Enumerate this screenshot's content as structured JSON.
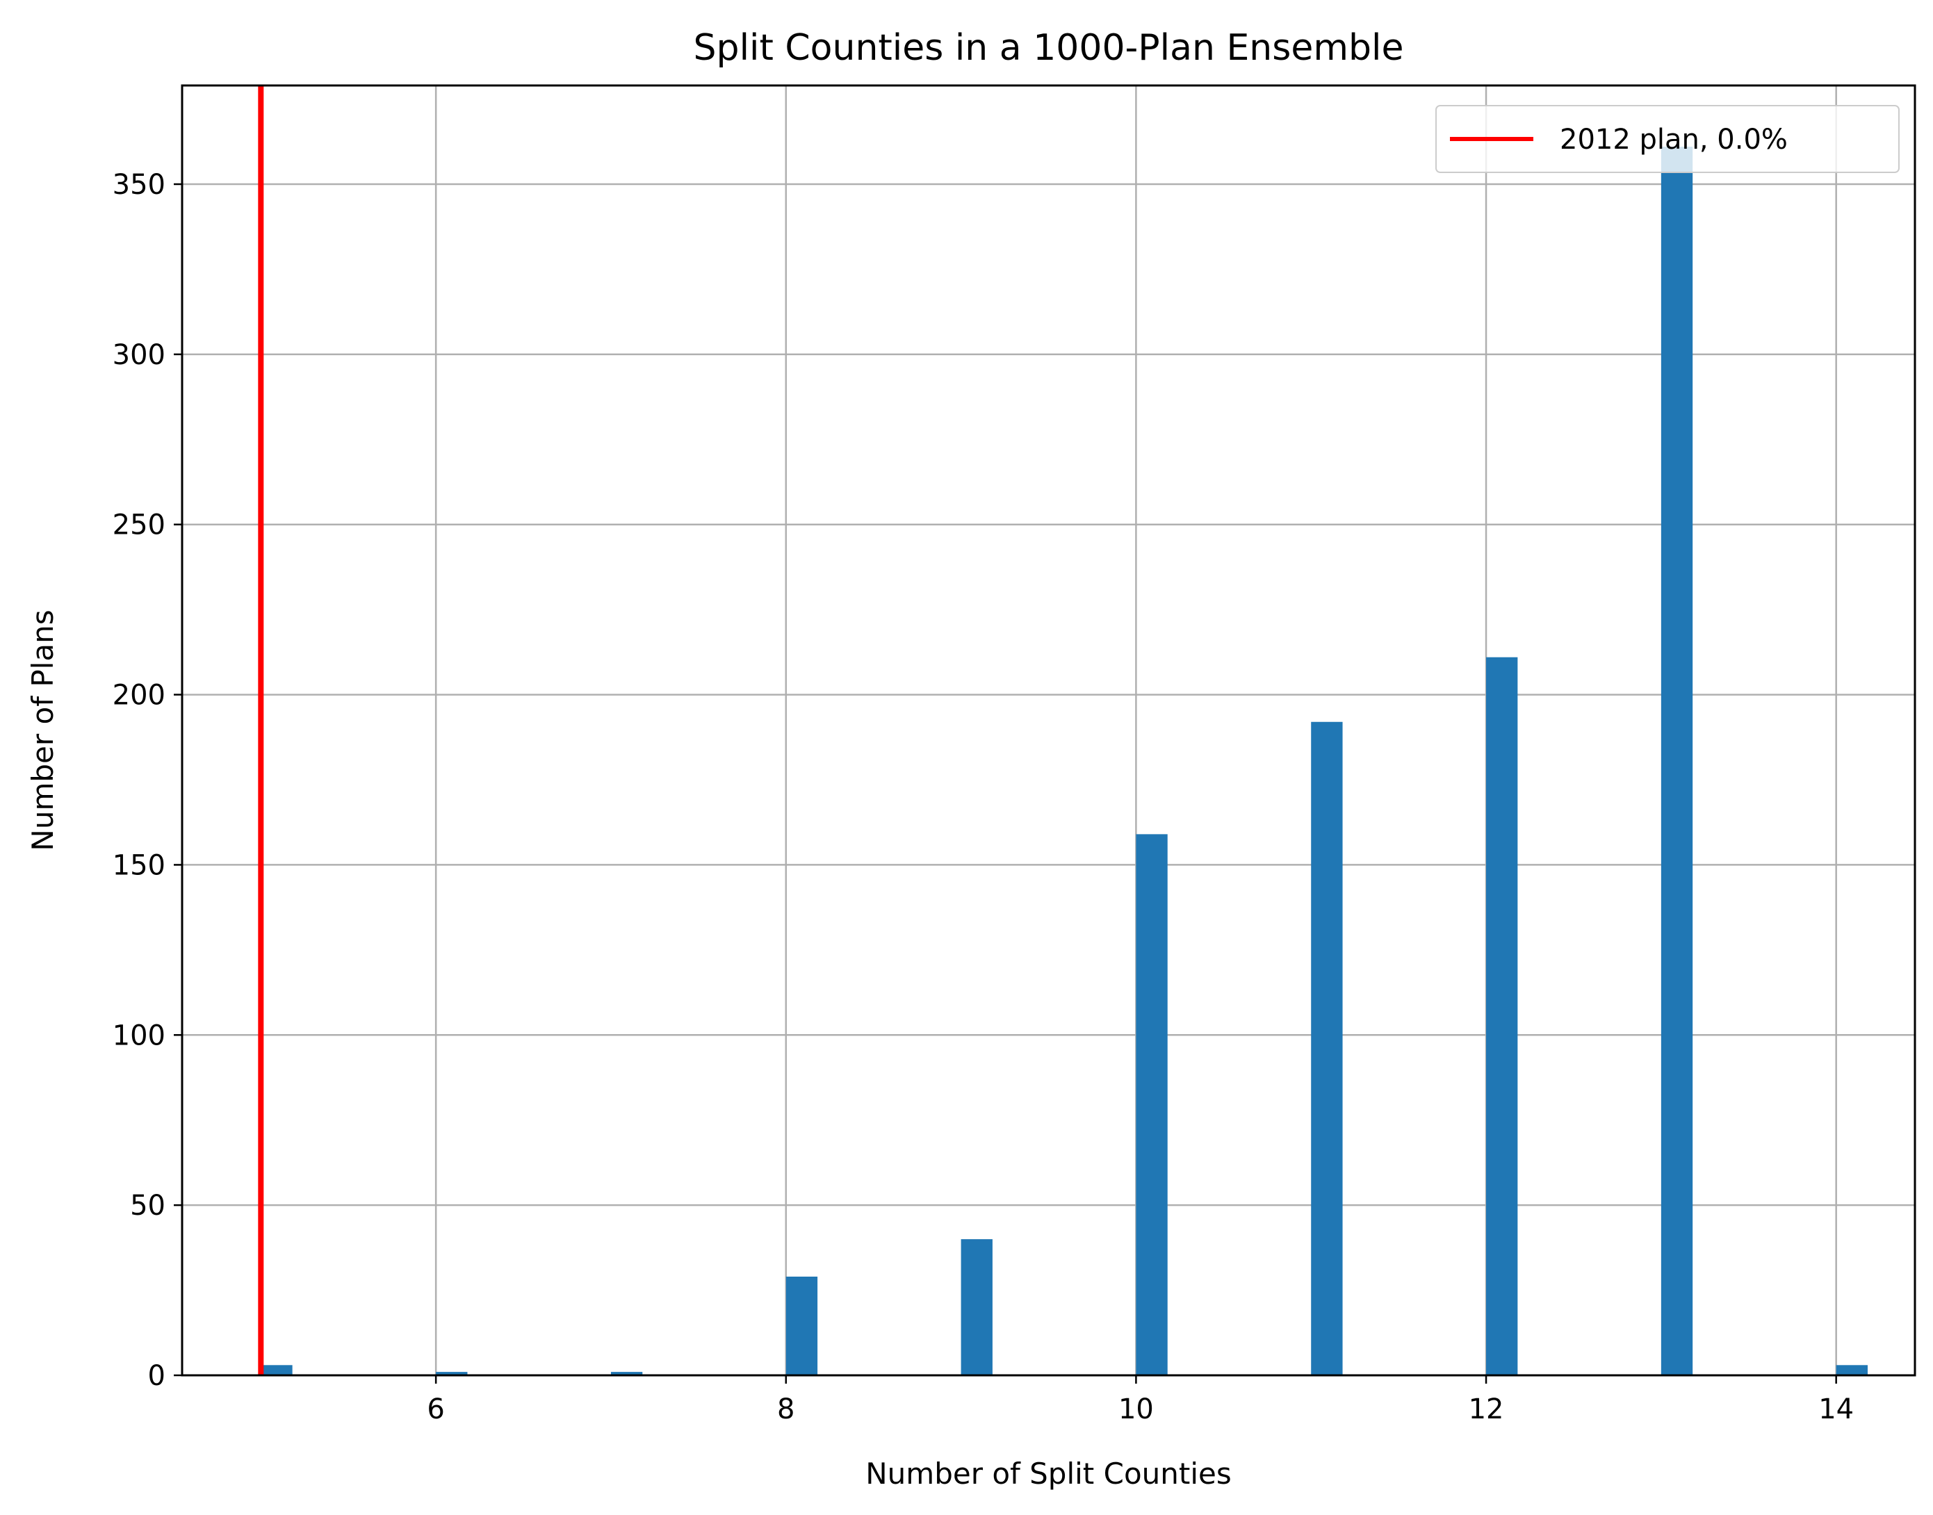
{
  "chart_data": {
    "type": "bar",
    "title": "Split Counties in a 1000-Plan Ensemble",
    "xlabel": "Number of Split Counties",
    "ylabel": "Number of Plans",
    "xlim": [
      4.55,
      14.45
    ],
    "ylim": [
      0,
      379
    ],
    "xticks": [
      6,
      8,
      10,
      12,
      14
    ],
    "yticks": [
      0,
      50,
      100,
      150,
      200,
      250,
      300,
      350
    ],
    "bin_width": 0.18,
    "bars": [
      {
        "x": 5,
        "value": 3
      },
      {
        "x": 6,
        "value": 1
      },
      {
        "x": 7,
        "value": 1
      },
      {
        "x": 8,
        "value": 29
      },
      {
        "x": 9,
        "value": 40
      },
      {
        "x": 10,
        "value": 159
      },
      {
        "x": 11,
        "value": 192
      },
      {
        "x": 12,
        "value": 211
      },
      {
        "x": 13,
        "value": 361
      },
      {
        "x": 14,
        "value": 3
      }
    ],
    "bar_color": "#2077b4",
    "reference_line": {
      "x": 5,
      "label": "2012 plan, 0.0%",
      "color": "#ff0000"
    },
    "grid": true,
    "legend_position": "top-right"
  }
}
